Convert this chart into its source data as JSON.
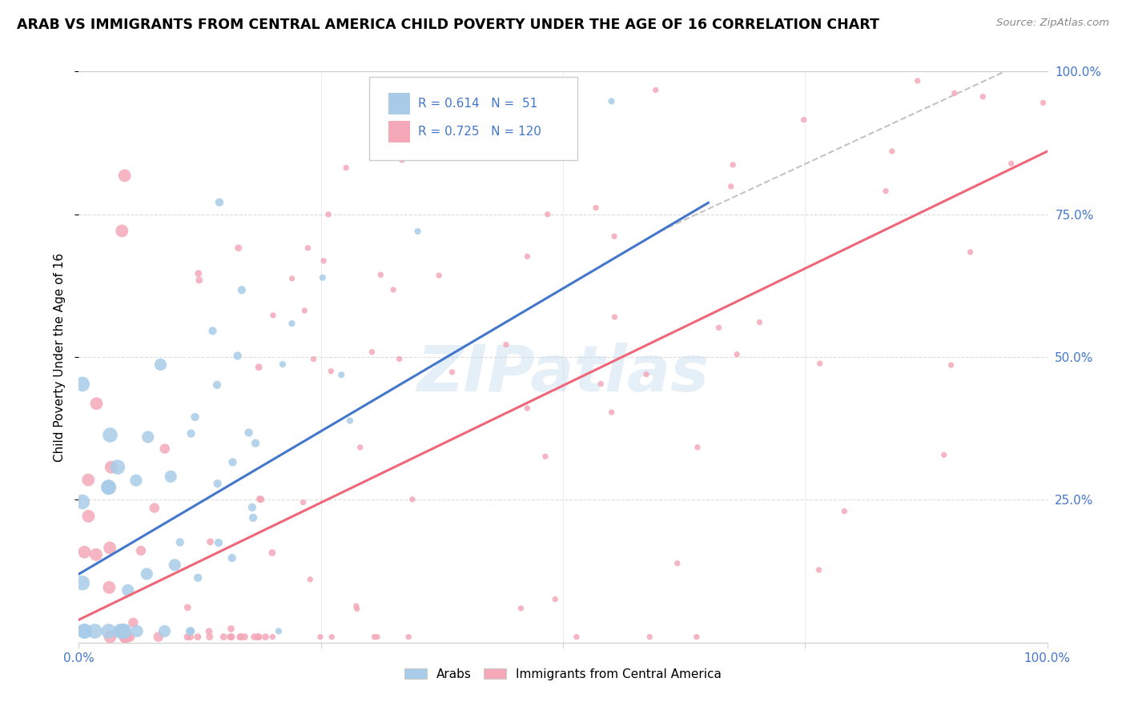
{
  "title": "ARAB VS IMMIGRANTS FROM CENTRAL AMERICA CHILD POVERTY UNDER THE AGE OF 16 CORRELATION CHART",
  "source": "Source: ZipAtlas.com",
  "ylabel": "Child Poverty Under the Age of 16",
  "arab_color": "#A8CCE8",
  "central_america_color": "#F4A8B8",
  "arab_line_color": "#4477CC",
  "central_america_line_color": "#EE6677",
  "arab_R": 0.614,
  "arab_N": 51,
  "central_america_R": 0.725,
  "central_america_N": 120,
  "watermark": "ZIPatlas",
  "background_color": "#FFFFFF"
}
